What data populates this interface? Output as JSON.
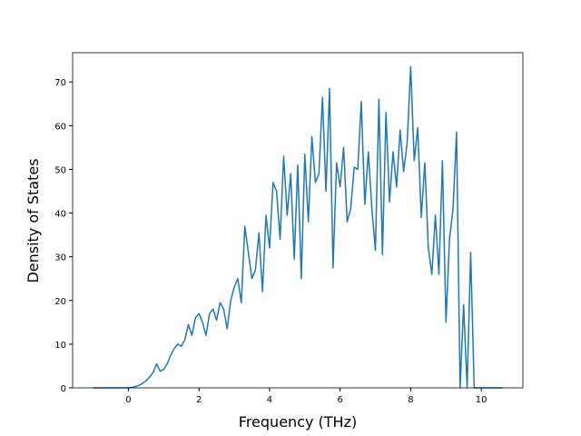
{
  "chart_data": {
    "type": "line",
    "xlabel": "Frequency (THz)",
    "ylabel": "Density of States",
    "x": [
      -1.0,
      -0.9,
      -0.8,
      -0.7,
      -0.6,
      -0.5,
      -0.4,
      -0.3,
      -0.2,
      -0.1,
      0.0,
      0.1,
      0.2,
      0.3,
      0.4,
      0.5,
      0.6,
      0.7,
      0.8,
      0.9,
      1.0,
      1.1,
      1.2,
      1.3,
      1.4,
      1.5,
      1.6,
      1.7,
      1.8,
      1.9,
      2.0,
      2.1,
      2.2,
      2.3,
      2.4,
      2.5,
      2.6,
      2.7,
      2.8,
      2.9,
      3.0,
      3.1,
      3.2,
      3.3,
      3.4,
      3.5,
      3.6,
      3.7,
      3.8,
      3.9,
      4.0,
      4.1,
      4.2,
      4.3,
      4.4,
      4.5,
      4.6,
      4.7,
      4.8,
      4.9,
      5.0,
      5.1,
      5.2,
      5.3,
      5.4,
      5.5,
      5.6,
      5.7,
      5.8,
      5.9,
      6.0,
      6.1,
      6.2,
      6.3,
      6.4,
      6.5,
      6.6,
      6.7,
      6.8,
      6.9,
      7.0,
      7.1,
      7.2,
      7.3,
      7.4,
      7.5,
      7.6,
      7.7,
      7.8,
      7.9,
      8.0,
      8.1,
      8.2,
      8.3,
      8.4,
      8.5,
      8.6,
      8.7,
      8.8,
      8.9,
      9.0,
      9.1,
      9.2,
      9.3,
      9.4,
      9.5,
      9.6,
      9.7,
      9.8,
      9.9,
      10.0,
      10.1,
      10.2,
      10.3,
      10.4,
      10.5,
      10.6
    ],
    "series": [
      {
        "color": "#1f77b4",
        "values": [
          0,
          0,
          0,
          0,
          0,
          0,
          0,
          0,
          0,
          0,
          0,
          0.1,
          0.3,
          0.6,
          1.0,
          1.6,
          2.5,
          3.5,
          5.5,
          3.8,
          4.2,
          5.5,
          7.5,
          9,
          10,
          9.5,
          11,
          14.5,
          12,
          16,
          17,
          15,
          12,
          17,
          18,
          15.5,
          19.5,
          18,
          13.5,
          20,
          23,
          25,
          19.5,
          37,
          31,
          25,
          27,
          35.5,
          22,
          39.5,
          32,
          47,
          45,
          34,
          53,
          39.5,
          49,
          29.5,
          51,
          25,
          53.5,
          38,
          57.5,
          47,
          49,
          66.5,
          45,
          68.5,
          27.5,
          51.5,
          46,
          55,
          38,
          41,
          50.5,
          50,
          65.5,
          42,
          54,
          41,
          31.5,
          66,
          30.5,
          63,
          42.5,
          54,
          46,
          59,
          49.5,
          56,
          73.5,
          52,
          59.5,
          39,
          51.5,
          32,
          26,
          39.5,
          26,
          52,
          15,
          34,
          41,
          58.5,
          0,
          19,
          0,
          31,
          0,
          0,
          0,
          0,
          0,
          0,
          0,
          0,
          0
        ]
      }
    ],
    "xlim": [
      -1.58,
      11.18
    ],
    "ylim": [
      0,
      76.7
    ],
    "xticks": [
      0,
      2,
      4,
      6,
      8,
      10
    ],
    "yticks": [
      0,
      10,
      20,
      30,
      40,
      50,
      60,
      70
    ]
  }
}
